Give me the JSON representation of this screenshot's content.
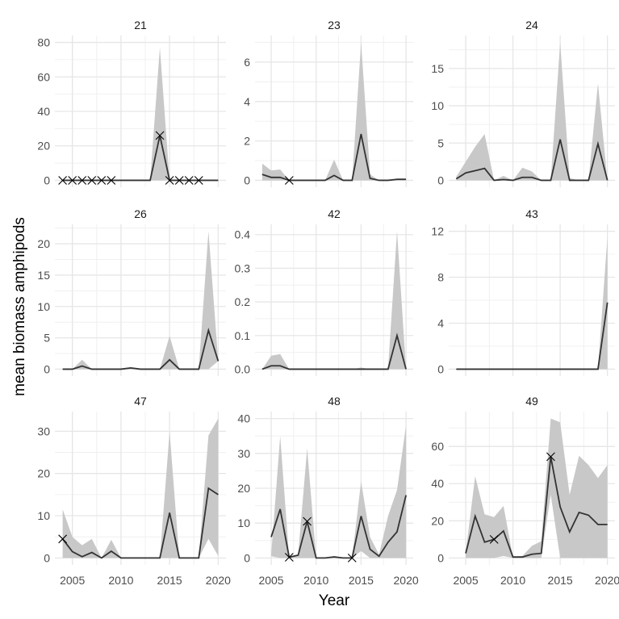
{
  "chart_data": {
    "type": "line",
    "xlabel": "Year",
    "ylabel": "mean biomass amphipods",
    "grid": true,
    "x_ticks": [
      2005,
      2010,
      2015,
      2020
    ],
    "band_color": "#c8c8c8",
    "line_color": "#333333",
    "panels": [
      {
        "title": "21",
        "yticks": [
          0,
          20,
          40,
          60,
          80
        ],
        "tick_labels": [
          "0",
          "20",
          "40",
          "60",
          "80"
        ],
        "x": [
          2004,
          2005,
          2006,
          2007,
          2008,
          2009,
          2010,
          2011,
          2012,
          2013,
          2014,
          2015,
          2016,
          2017,
          2018,
          2019,
          2020
        ],
        "mean": [
          0,
          0,
          0,
          0,
          0,
          0,
          0,
          0,
          0,
          0,
          26,
          0,
          0,
          0,
          0,
          0,
          0
        ],
        "lower": [
          0,
          0,
          0,
          0,
          0,
          0,
          0,
          0,
          0,
          0,
          0,
          0,
          0,
          0,
          0,
          0,
          0
        ],
        "upper": [
          0,
          0,
          0,
          0,
          0,
          0,
          0,
          0,
          0,
          0,
          77,
          0,
          0,
          0,
          0,
          0,
          0
        ],
        "crosses": [
          2004,
          2005,
          2006,
          2007,
          2008,
          2009,
          2014,
          2015,
          2016,
          2017,
          2018
        ]
      },
      {
        "title": "23",
        "yticks": [
          0,
          2,
          4,
          6
        ],
        "tick_labels": [
          "0",
          "2",
          "4",
          "6"
        ],
        "x": [
          2004,
          2005,
          2006,
          2007,
          2008,
          2009,
          2010,
          2011,
          2012,
          2013,
          2014,
          2015,
          2016,
          2017,
          2018,
          2019,
          2020
        ],
        "mean": [
          0.3,
          0.15,
          0.15,
          0,
          0,
          0,
          0,
          0,
          0.25,
          0,
          0,
          2.35,
          0.1,
          0,
          0,
          0.05,
          0.05
        ],
        "lower": [
          0,
          0,
          0,
          0,
          0,
          0,
          0,
          0,
          0,
          0,
          0,
          0,
          0,
          0,
          0,
          0,
          0
        ],
        "upper": [
          0.85,
          0.5,
          0.55,
          0,
          0,
          0,
          0,
          0,
          1.05,
          0,
          0,
          7,
          0.3,
          0,
          0,
          0.1,
          0.1
        ],
        "crosses": [
          2007
        ]
      },
      {
        "title": "24",
        "yticks": [
          0,
          5,
          10,
          15
        ],
        "tick_labels": [
          "0",
          "5",
          "10",
          "15"
        ],
        "x": [
          2004,
          2005,
          2006,
          2007,
          2008,
          2009,
          2010,
          2011,
          2012,
          2013,
          2014,
          2015,
          2016,
          2017,
          2018,
          2019,
          2020
        ],
        "mean": [
          0.2,
          1,
          1.3,
          1.6,
          0,
          0.1,
          0,
          0.4,
          0.4,
          0,
          0,
          5.5,
          0,
          0,
          0,
          4.9,
          0
        ],
        "lower": [
          0,
          0,
          0,
          0,
          0,
          0,
          0,
          0,
          0,
          0,
          0,
          0,
          0,
          0,
          0,
          0,
          0
        ],
        "upper": [
          0.5,
          2.5,
          4.5,
          6.2,
          0,
          0.6,
          0,
          1.7,
          1.2,
          0,
          0,
          18.5,
          0.3,
          0,
          0,
          13,
          0
        ],
        "crosses": []
      },
      {
        "title": "26",
        "yticks": [
          0,
          5,
          10,
          15,
          20
        ],
        "tick_labels": [
          "0",
          "5",
          "10",
          "15",
          "20"
        ],
        "x": [
          2004,
          2005,
          2006,
          2007,
          2008,
          2009,
          2010,
          2011,
          2012,
          2013,
          2014,
          2015,
          2016,
          2017,
          2018,
          2019,
          2020
        ],
        "mean": [
          0,
          0,
          0.5,
          0,
          0,
          0,
          0,
          0.2,
          0,
          0,
          0,
          1.5,
          0,
          0,
          0,
          6.2,
          1.3
        ],
        "lower": [
          0,
          0,
          0,
          0,
          0,
          0,
          0,
          0,
          0,
          0,
          0,
          0,
          0,
          0,
          0,
          0,
          1.3
        ],
        "upper": [
          0,
          0,
          1.5,
          0,
          0,
          0,
          0,
          0.3,
          0,
          0,
          0,
          5.3,
          0,
          0,
          0,
          22,
          1.3
        ],
        "crosses": []
      },
      {
        "title": "42",
        "yticks": [
          0,
          0.1,
          0.2,
          0.3,
          0.4
        ],
        "tick_labels": [
          "0.0",
          "0.1",
          "0.2",
          "0.3",
          "0.4"
        ],
        "x": [
          2004,
          2005,
          2006,
          2007,
          2008,
          2009,
          2010,
          2011,
          2012,
          2013,
          2014,
          2015,
          2016,
          2017,
          2018,
          2019,
          2020
        ],
        "mean": [
          0,
          0.01,
          0.01,
          0,
          0,
          0,
          0,
          0,
          0,
          0,
          0,
          0,
          0,
          0,
          0,
          0.1,
          0
        ],
        "lower": [
          0,
          0,
          0,
          0,
          0,
          0,
          0,
          0,
          0,
          0,
          0,
          0,
          0,
          0,
          0,
          0,
          0
        ],
        "upper": [
          0,
          0.04,
          0.045,
          0,
          0,
          0,
          0,
          0,
          0,
          0,
          0,
          0.005,
          0,
          0,
          0,
          0.41,
          0
        ],
        "crosses": []
      },
      {
        "title": "43",
        "yticks": [
          0,
          4,
          8,
          12
        ],
        "tick_labels": [
          "0",
          "4",
          "8",
          "12"
        ],
        "x": [
          2004,
          2005,
          2006,
          2007,
          2008,
          2009,
          2010,
          2011,
          2012,
          2013,
          2014,
          2015,
          2016,
          2017,
          2018,
          2019,
          2020
        ],
        "mean": [
          0,
          0,
          0,
          0,
          0,
          0,
          0,
          0,
          0,
          0,
          0,
          0,
          0,
          0,
          0,
          0,
          5.8
        ],
        "lower": [
          0,
          0,
          0,
          0,
          0,
          0,
          0,
          0,
          0,
          0,
          0,
          0,
          0,
          0,
          0,
          0,
          0
        ],
        "upper": [
          0,
          0,
          0,
          0,
          0,
          0,
          0,
          0,
          0,
          0,
          0,
          0,
          0,
          0,
          0,
          0,
          11.5
        ],
        "crosses": []
      },
      {
        "title": "47",
        "yticks": [
          0,
          10,
          20,
          30
        ],
        "tick_labels": [
          "0",
          "10",
          "20",
          "30"
        ],
        "x": [
          2004,
          2005,
          2006,
          2007,
          2008,
          2009,
          2010,
          2011,
          2012,
          2013,
          2014,
          2015,
          2016,
          2017,
          2018,
          2019,
          2020
        ],
        "mean": [
          4.5,
          1.5,
          0.3,
          1.3,
          0,
          1.6,
          0,
          0,
          0,
          0,
          0,
          10.7,
          0,
          0,
          0,
          16.5,
          15
        ],
        "lower": [
          0,
          0,
          0,
          0,
          0,
          0,
          0,
          0,
          0,
          0,
          0,
          0,
          0,
          0,
          0,
          4.5,
          0.5
        ],
        "upper": [
          11.5,
          5,
          3,
          4.5,
          0,
          4.3,
          0,
          0,
          0,
          0,
          0,
          30,
          0,
          0,
          0,
          29,
          33
        ],
        "crosses": [
          2004
        ]
      },
      {
        "title": "48",
        "yticks": [
          0,
          10,
          20,
          30,
          40
        ],
        "tick_labels": [
          "0",
          "10",
          "20",
          "30",
          "40"
        ],
        "x": [
          2005,
          2006,
          2007,
          2008,
          2009,
          2010,
          2011,
          2012,
          2013,
          2014,
          2015,
          2016,
          2017,
          2018,
          2019,
          2020
        ],
        "mean": [
          6,
          14,
          0.2,
          0.8,
          10.5,
          0,
          0,
          0.3,
          0,
          0,
          12,
          2.5,
          0.5,
          4.5,
          7.5,
          18
        ],
        "lower": [
          0.5,
          0,
          0,
          0,
          0,
          0,
          0,
          0,
          0,
          0,
          2,
          0,
          0,
          0,
          0,
          0
        ],
        "upper": [
          1,
          35,
          0,
          1,
          31.5,
          0,
          0,
          0.5,
          0,
          0,
          22,
          6,
          1,
          12,
          19.5,
          38
        ],
        "crosses": [
          2007,
          2009,
          2014
        ]
      },
      {
        "title": "49",
        "yticks": [
          0,
          20,
          40,
          60
        ],
        "tick_labels": [
          "0",
          "20",
          "40",
          "60"
        ],
        "x": [
          2005,
          2006,
          2007,
          2008,
          2009,
          2010,
          2011,
          2012,
          2013,
          2014,
          2015,
          2016,
          2017,
          2018,
          2019,
          2020
        ],
        "mean": [
          2.5,
          22.5,
          8.5,
          10,
          14.5,
          0.5,
          0.5,
          2,
          2.5,
          54.5,
          27.5,
          14,
          24.5,
          23,
          18,
          18
        ],
        "lower": [
          0,
          0,
          0,
          0,
          1,
          0,
          0,
          0,
          0,
          34,
          0,
          0,
          0,
          0,
          0,
          0
        ],
        "upper": [
          3,
          44,
          23.5,
          22,
          28,
          0.5,
          1,
          6.5,
          9,
          75,
          73,
          34,
          55,
          50,
          43,
          50
        ],
        "crosses": [
          2008,
          2014
        ]
      }
    ]
  }
}
